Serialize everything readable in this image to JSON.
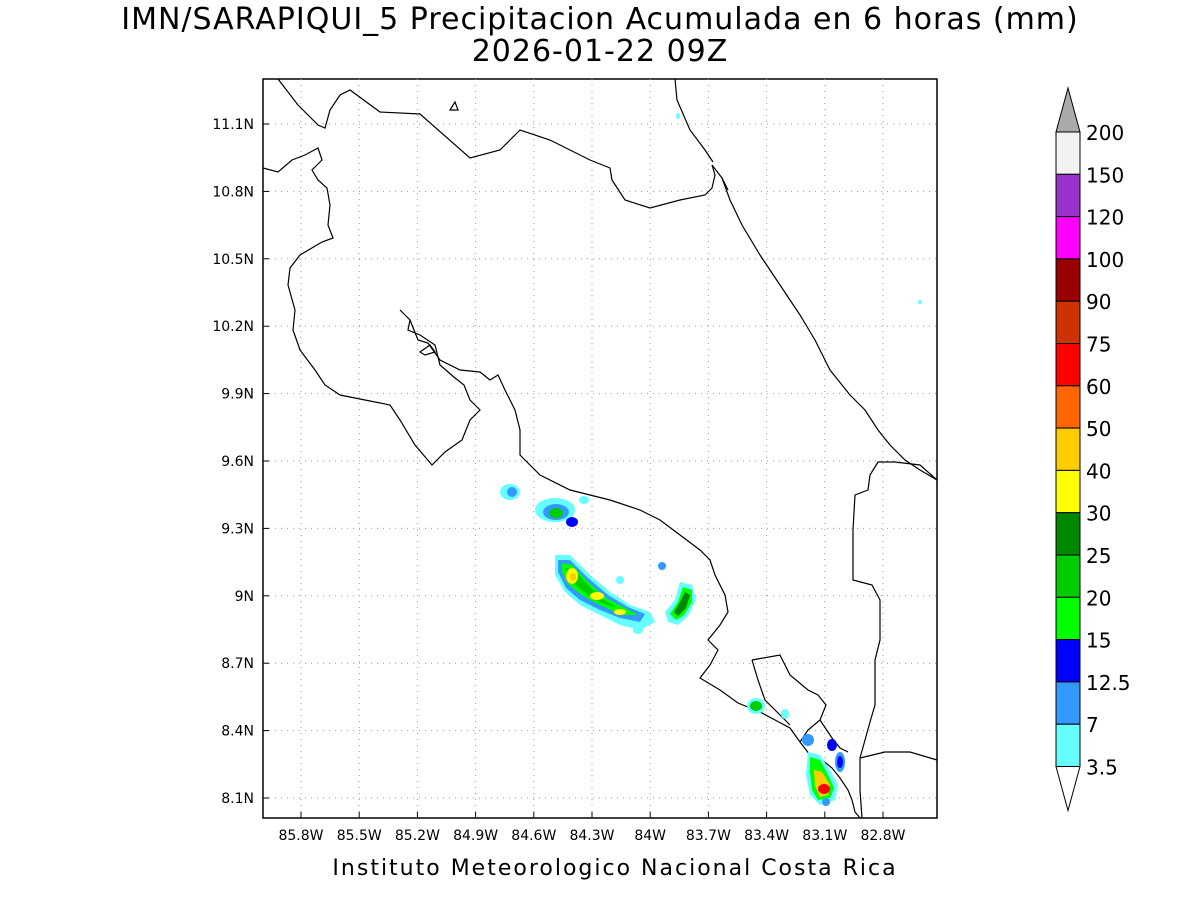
{
  "title_line1": "IMN/SARAPIQUI_5 Precipitacion Acumulada en 6 horas (mm)",
  "title_line2": "2026-01-22 09Z",
  "footer": "Instituto Meteorologico Nacional Costa Rica",
  "map": {
    "lon_range": [
      -86.0,
      -83.0
    ],
    "lat_range": [
      8.0,
      11.3
    ],
    "lon_ticks": [
      "85.8W",
      "85.5W",
      "85.2W",
      "84.9W",
      "84.6W",
      "84.3W",
      "84W",
      "83.7W",
      "83.4W",
      "83.1W",
      "82.8W"
    ],
    "lat_ticks": [
      "11.1N",
      "10.8N",
      "10.5N",
      "10.2N",
      "9.9N",
      "9.6N",
      "9.3N",
      "9N",
      "8.7N",
      "8.4N",
      "8.1N"
    ],
    "grid": "dotted"
  },
  "colorbar": {
    "labels": [
      "3.5",
      "7",
      "12.5",
      "15",
      "20",
      "25",
      "30",
      "40",
      "50",
      "60",
      "75",
      "90",
      "100",
      "120",
      "150",
      "200"
    ],
    "colors": [
      "#ffffff",
      "#66ffff",
      "#3399ff",
      "#0000ff",
      "#00ff00",
      "#00cc00",
      "#008800",
      "#ffff00",
      "#ffcc00",
      "#ff6600",
      "#ff0000",
      "#cc3300",
      "#990000",
      "#ff00ff",
      "#9933cc",
      "#f2f2f2",
      "#aaaaaa"
    ]
  },
  "precip_colors": {
    "lightcyan": "#66ffff",
    "skyblue": "#3399ff",
    "blue": "#0000ff",
    "lightgreen": "#00ff00",
    "green": "#00cc00",
    "darkgreen": "#008800",
    "yellow": "#ffff00",
    "gold": "#ffcc00",
    "orange": "#ff6600",
    "red": "#ff0000"
  }
}
